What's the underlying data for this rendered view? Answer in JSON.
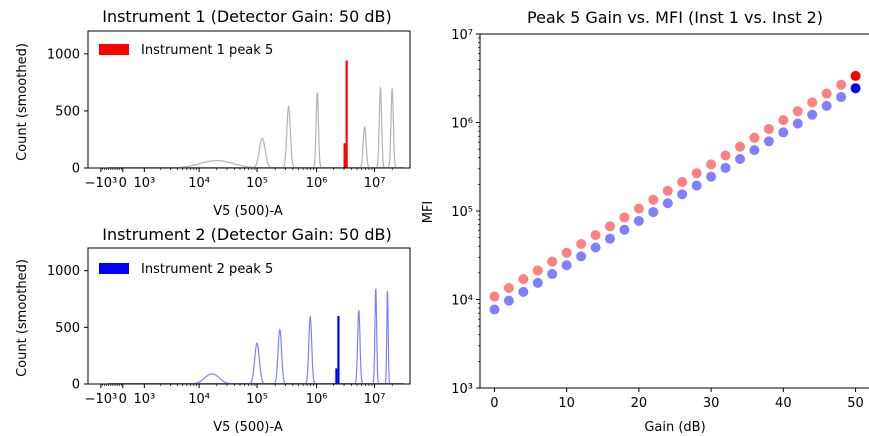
{
  "colors": {
    "inst1": "#ff0000",
    "inst2": "#0000ff",
    "inst1_point_faded": "#ff8080",
    "inst2_point_faded": "#8080ff",
    "hist1_background": "#b3b3b3",
    "hist2_background": "#8080ff"
  },
  "chart_data": [
    {
      "type": "area",
      "title": "Instrument 1 (Detector Gain: 50 dB)",
      "xlabel": "V5 (500)-A",
      "ylabel": "Count (smoothed)",
      "xscale": "symlog",
      "xticks": [
        "−10³",
        "0",
        "10³",
        "10⁴",
        "10⁵",
        "10⁶",
        "10⁷"
      ],
      "yticks": [
        "0",
        "500",
        "1000"
      ],
      "ylim": [
        0,
        1200
      ],
      "legend": {
        "label": "Instrument 1 peak 5",
        "placement": "top-left"
      },
      "background_peaks": [
        {
          "center_log10": 4.3,
          "width": 0.28,
          "height": 65,
          "color": "gray"
        },
        {
          "center_log10": 5.08,
          "width": 0.05,
          "height": 260,
          "color": "gray"
        },
        {
          "center_log10": 5.53,
          "width": 0.03,
          "height": 540,
          "color": "gray"
        },
        {
          "center_log10": 6.02,
          "width": 0.02,
          "height": 660,
          "color": "gray"
        },
        {
          "center_log10": 6.83,
          "width": 0.025,
          "height": 360,
          "color": "gray"
        },
        {
          "center_log10": 7.1,
          "width": 0.02,
          "height": 700,
          "color": "gray"
        },
        {
          "center_log10": 7.3,
          "width": 0.02,
          "height": 690,
          "color": "gray"
        }
      ],
      "highlight_peak": {
        "center_log10": 6.52,
        "width": 0.008,
        "height": 940,
        "color": "red"
      }
    },
    {
      "type": "area",
      "title": "Instrument 2 (Detector Gain: 50 dB)",
      "xlabel": "V5 (500)-A",
      "ylabel": "Count (smoothed)",
      "xscale": "symlog",
      "xticks": [
        "−10³",
        "0",
        "10³",
        "10⁴",
        "10⁵",
        "10⁶",
        "10⁷"
      ],
      "yticks": [
        "0",
        "500",
        "1000"
      ],
      "ylim": [
        0,
        1200
      ],
      "legend": {
        "label": "Instrument 2 peak 5",
        "placement": "top-left"
      },
      "background_peaks": [
        {
          "center_log10": 4.22,
          "width": 0.12,
          "height": 90,
          "color": "blue"
        },
        {
          "center_log10": 4.99,
          "width": 0.04,
          "height": 360,
          "color": "blue"
        },
        {
          "center_log10": 5.38,
          "width": 0.03,
          "height": 480,
          "color": "blue"
        },
        {
          "center_log10": 5.9,
          "width": 0.025,
          "height": 590,
          "color": "blue"
        },
        {
          "center_log10": 6.73,
          "width": 0.02,
          "height": 650,
          "color": "blue"
        },
        {
          "center_log10": 7.02,
          "width": 0.015,
          "height": 840,
          "color": "blue"
        },
        {
          "center_log10": 7.22,
          "width": 0.012,
          "height": 820,
          "color": "blue"
        }
      ],
      "highlight_peak": {
        "center_log10": 6.38,
        "width": 0.01,
        "height": 600,
        "color": "blue"
      }
    },
    {
      "type": "scatter",
      "title": "Peak 5 Gain vs. MFI (Inst 1 vs. Inst 2)",
      "xlabel": "Gain (dB)",
      "ylabel": "MFI",
      "yscale": "log",
      "xlim": [
        -2,
        52
      ],
      "ylim": [
        1000,
        10000000
      ],
      "xticks": [
        "0",
        "10",
        "20",
        "30",
        "40",
        "50"
      ],
      "yticks": [
        "10³",
        "10⁴",
        "10⁵",
        "10⁶",
        "10⁷"
      ],
      "x": [
        0,
        2,
        4,
        6,
        8,
        10,
        12,
        14,
        16,
        18,
        20,
        22,
        24,
        26,
        28,
        30,
        32,
        34,
        36,
        38,
        40,
        42,
        44,
        46,
        48,
        50
      ],
      "series": [
        {
          "color": "red",
          "values": [
            10800,
            13500,
            17000,
            21300,
            26800,
            33700,
            42400,
            53400,
            67200,
            84600,
            106500,
            134000,
            168700,
            212400,
            267400,
            336600,
            423700,
            533400,
            671500,
            845300,
            1064000,
            1340000,
            1687000,
            2124000,
            2674000,
            3360000
          ]
        },
        {
          "color": "blue",
          "values": [
            7700,
            9700,
            12200,
            15400,
            19400,
            24400,
            30700,
            38700,
            48700,
            61300,
            77200,
            97200,
            122400,
            154100,
            194000,
            244200,
            307400,
            387000,
            487200,
            613400,
            772200,
            972200,
            1224000,
            1541000,
            1940000,
            2440000
          ]
        }
      ],
      "highlight_last_point": true
    }
  ]
}
